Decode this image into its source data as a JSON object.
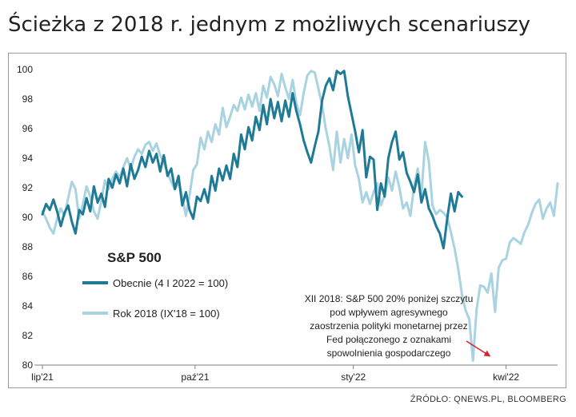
{
  "title": "Ścieżka z 2018 r. jednym z możliwych scenariuszy",
  "source": "ŹRÓDŁO: QNEWS.PL, BLOOMBERG",
  "colors": {
    "current": "#1f7a96",
    "year2018": "#a9d3e0",
    "arrow": "#d9232d",
    "axis": "#7f7f7f",
    "text": "#222222"
  },
  "chart_data": {
    "type": "line",
    "title": "S&P 500",
    "xlabel": "",
    "ylabel": "",
    "ylim": [
      80,
      100
    ],
    "yticks": [
      80,
      82,
      84,
      86,
      88,
      90,
      92,
      94,
      96,
      98,
      100
    ],
    "xlim": [
      0,
      280
    ],
    "xticks": [
      {
        "x": 0,
        "label": "lip'21"
      },
      {
        "x": 83,
        "label": "paź'21"
      },
      {
        "x": 169,
        "label": "sty'22"
      },
      {
        "x": 252,
        "label": "kwi'22"
      }
    ],
    "series": [
      {
        "name": "Obecnie (4 I 2022 = 100)",
        "x": [
          0,
          2,
          4,
          6,
          8,
          10,
          12,
          14,
          16,
          18,
          20,
          22,
          24,
          26,
          28,
          30,
          32,
          34,
          36,
          38,
          40,
          42,
          44,
          46,
          48,
          50,
          52,
          54,
          56,
          58,
          60,
          62,
          64,
          66,
          68,
          70,
          72,
          74,
          76,
          78,
          80,
          82,
          84,
          86,
          88,
          90,
          92,
          94,
          96,
          98,
          100,
          102,
          104,
          106,
          108,
          110,
          112,
          114,
          116,
          118,
          120,
          122,
          124,
          126,
          128,
          130,
          132,
          134,
          136,
          138,
          140,
          142,
          144,
          146,
          148,
          150,
          152,
          154,
          156,
          158,
          160,
          162,
          164,
          166,
          168,
          170,
          172,
          174,
          176,
          178,
          180,
          182,
          184,
          186,
          188,
          190,
          192,
          194,
          196,
          198,
          200,
          202,
          204,
          206,
          208,
          210,
          212,
          214,
          216,
          218,
          220,
          222,
          224,
          226,
          228
        ],
        "values": [
          90.2,
          90.9,
          90.5,
          91.2,
          90.4,
          89.4,
          90.3,
          90.8,
          89.7,
          88.9,
          90.5,
          90.2,
          91.3,
          90.4,
          92.1,
          91.0,
          91.6,
          90.7,
          92.6,
          92.0,
          92.9,
          92.3,
          93.3,
          92.1,
          93.6,
          92.6,
          93.2,
          94.1,
          93.4,
          94.5,
          93.7,
          94.3,
          93.1,
          94.2,
          92.8,
          93.3,
          91.9,
          92.8,
          90.8,
          91.7,
          90.5,
          89.9,
          91.4,
          91.1,
          91.9,
          91.0,
          92.8,
          91.8,
          93.3,
          92.5,
          93.5,
          92.6,
          94.3,
          93.4,
          95.6,
          94.6,
          96.1,
          95.2,
          96.8,
          95.9,
          97.6,
          96.3,
          98.0,
          96.7,
          97.8,
          96.5,
          97.9,
          96.8,
          98.4,
          97.2,
          96.3,
          95.2,
          94.4,
          93.7,
          94.8,
          95.8,
          97.9,
          98.9,
          99.4,
          98.6,
          99.9,
          99.7,
          99.9,
          98.2,
          97.0,
          95.8,
          94.4,
          95.9,
          92.7,
          94.1,
          93.9,
          90.5,
          92.3,
          91.4,
          94.0,
          95.1,
          95.8,
          93.9,
          94.4,
          93.0,
          92.4,
          91.7,
          92.9,
          91.0,
          91.9,
          90.6,
          90.1,
          89.4,
          88.9,
          87.9,
          89.9,
          91.6,
          90.4,
          91.7,
          91.4
        ]
      },
      {
        "name": "Rok 2018 (IX'18 = 100)",
        "x": [
          0,
          2,
          4,
          6,
          8,
          10,
          12,
          14,
          16,
          18,
          20,
          22,
          24,
          26,
          28,
          30,
          32,
          34,
          36,
          38,
          40,
          42,
          44,
          46,
          48,
          50,
          52,
          54,
          56,
          58,
          60,
          62,
          64,
          66,
          68,
          70,
          72,
          74,
          76,
          78,
          80,
          82,
          84,
          86,
          88,
          90,
          92,
          94,
          96,
          98,
          100,
          102,
          104,
          106,
          108,
          110,
          112,
          114,
          116,
          118,
          120,
          122,
          124,
          126,
          128,
          130,
          132,
          134,
          136,
          138,
          140,
          142,
          144,
          146,
          148,
          150,
          152,
          154,
          156,
          158,
          160,
          162,
          164,
          166,
          168,
          170,
          172,
          174,
          176,
          178,
          180,
          182,
          184,
          186,
          188,
          190,
          192,
          194,
          196,
          198,
          200,
          202,
          204,
          206,
          208,
          210,
          212,
          214,
          216,
          218,
          220,
          222,
          224,
          226,
          228,
          230,
          232,
          234,
          236,
          238,
          240,
          242,
          244,
          246,
          248,
          250,
          252,
          254,
          256,
          258,
          260,
          262,
          264,
          266,
          268,
          270,
          272,
          274,
          276,
          278,
          280
        ],
        "values": [
          90.4,
          89.9,
          89.3,
          88.9,
          89.9,
          90.6,
          90.1,
          91.3,
          92.4,
          91.9,
          89.9,
          90.9,
          92.1,
          91.4,
          90.4,
          89.9,
          91.1,
          92.5,
          91.9,
          92.6,
          93.1,
          92.7,
          93.4,
          94.0,
          93.3,
          94.1,
          94.6,
          94.3,
          94.9,
          95.1,
          94.5,
          95.0,
          94.2,
          93.7,
          93.0,
          92.4,
          91.9,
          92.4,
          91.4,
          90.1,
          91.5,
          93.2,
          93.6,
          95.4,
          94.6,
          95.8,
          95.1,
          96.3,
          95.6,
          97.4,
          96.1,
          96.8,
          97.6,
          97.2,
          98.1,
          97.3,
          98.3,
          97.5,
          98.4,
          97.2,
          98.9,
          98.1,
          99.5,
          99.0,
          98.2,
          99.7,
          98.8,
          98.0,
          99.3,
          97.7,
          96.9,
          98.4,
          99.6,
          99.9,
          99.8,
          98.7,
          97.6,
          96.0,
          94.8,
          93.2,
          95.8,
          93.7,
          95.3,
          94.0,
          95.6,
          93.5,
          92.6,
          91.0,
          91.7,
          90.9,
          91.7,
          92.3,
          90.8,
          91.5,
          92.7,
          91.8,
          93.1,
          92.0,
          90.6,
          91.0,
          90.1,
          92.1,
          93.3,
          91.5,
          95.1,
          93.8,
          90.8,
          90.2,
          90.5,
          90.3,
          90.0,
          89.0,
          87.9,
          86.5,
          84.8,
          83.7,
          83.1,
          80.3,
          83.8,
          85.4,
          85.3,
          84.9,
          86.2,
          83.6,
          86.6,
          87.1,
          87.2,
          88.3,
          88.6,
          88.4,
          88.2,
          89.0,
          89.5,
          90.3,
          90.9,
          91.2,
          89.9,
          90.6,
          91.0,
          90.1,
          92.3
        ]
      }
    ],
    "legend": {
      "title": "S&P 500",
      "placement": "lower-left"
    },
    "annotation": {
      "lines": [
        "XII 2018: S&P 500 20% poniżej szczytu",
        "pod wpływem agresywnego",
        "zaostrzenia polityki monetarnej przez",
        "Fed połączonego z oznakami",
        "spowolnienia gospodarczego"
      ],
      "arrow_target": {
        "x": 245,
        "y": 80.5
      }
    }
  }
}
